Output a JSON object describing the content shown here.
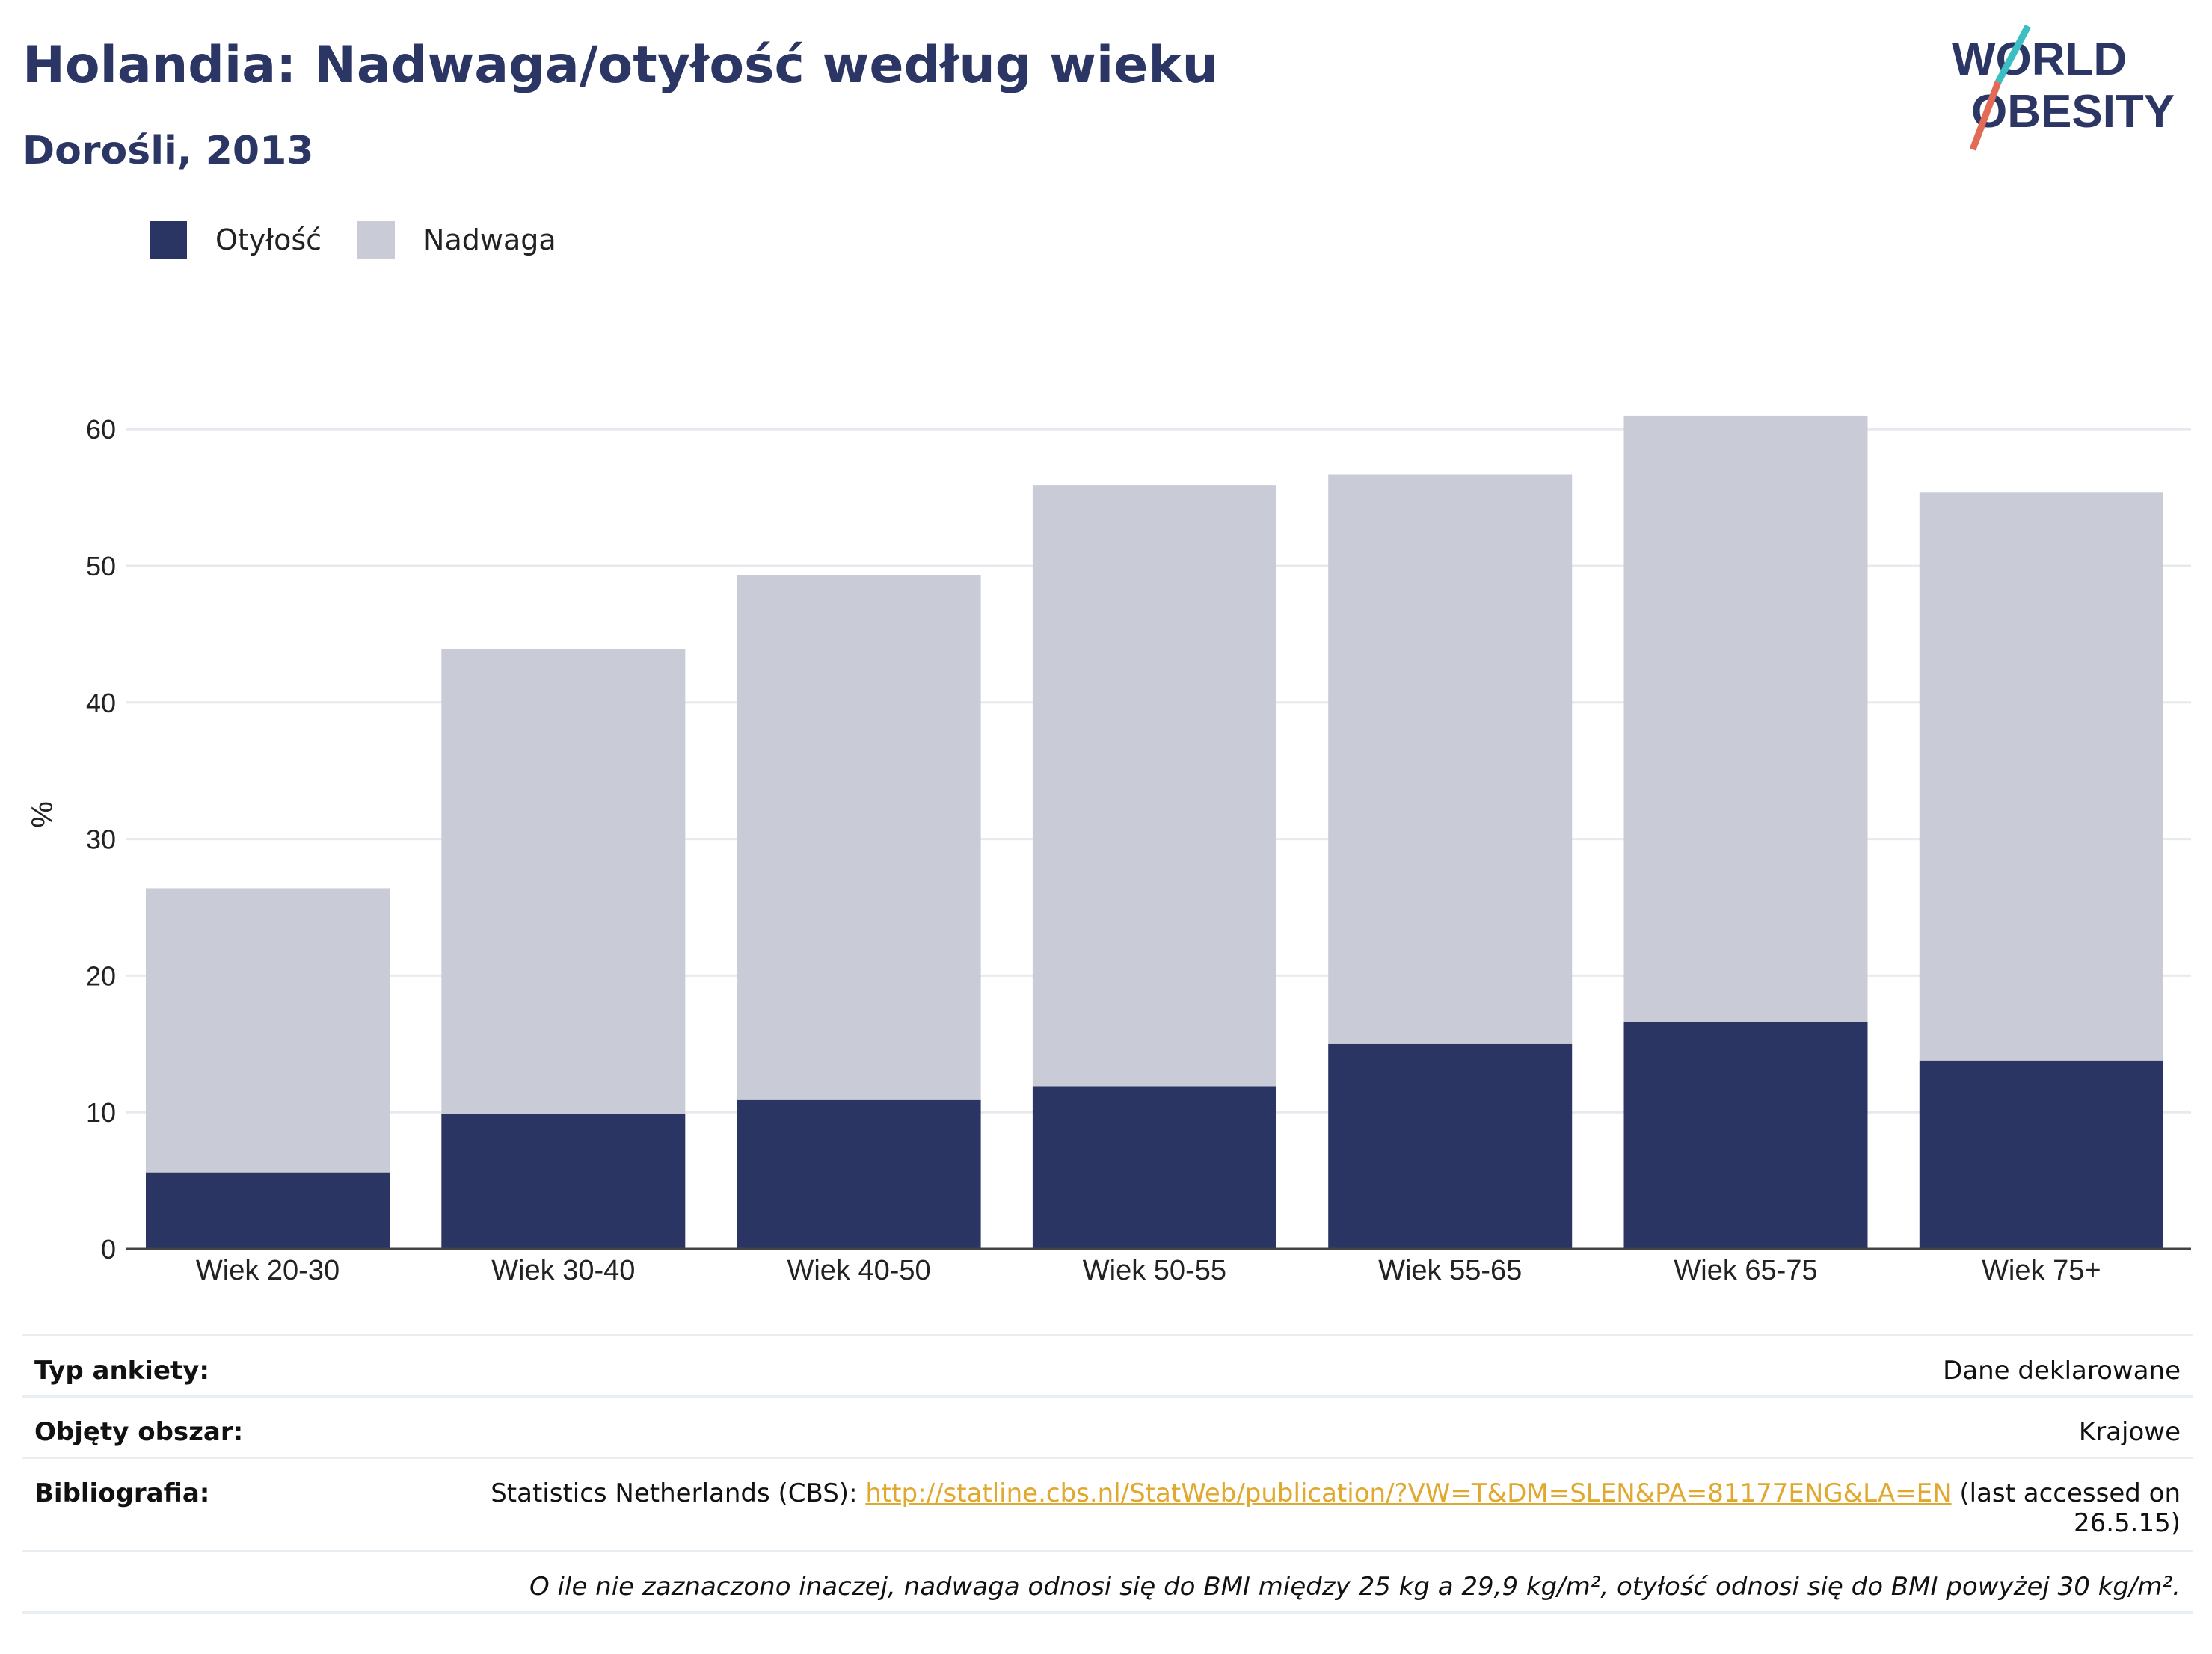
{
  "header": {
    "title": "Holandia: Nadwaga/otyłość według wieku",
    "subtitle": "Dorośli, 2013"
  },
  "logo": {
    "line1": "WORLD",
    "line2": "OBESITY"
  },
  "colors": {
    "obesity": "#2a3563",
    "overweight": "#c9cbd7",
    "title": "#2b3664",
    "link": "#e0a82e",
    "gridline": "#e6e9ee"
  },
  "legend": [
    {
      "label": "Otyłość",
      "color": "#2a3563"
    },
    {
      "label": "Nadwaga",
      "color": "#c9cbd7"
    }
  ],
  "chart_data": {
    "type": "bar",
    "stacked": true,
    "categories": [
      "Wiek 20-30",
      "Wiek 30-40",
      "Wiek 40-50",
      "Wiek 50-55",
      "Wiek 55-65",
      "Wiek 65-75",
      "Wiek 75+"
    ],
    "series": [
      {
        "name": "Otyłość",
        "values": [
          5.6,
          9.9,
          10.9,
          11.9,
          15.0,
          16.6,
          13.8
        ]
      },
      {
        "name": "Nadwaga",
        "values": [
          20.8,
          34.0,
          38.4,
          44.0,
          41.7,
          44.4,
          41.6
        ]
      }
    ],
    "ylabel": "%",
    "ylim": [
      0,
      64
    ],
    "yticks": [
      0,
      10,
      20,
      30,
      40,
      50,
      60
    ],
    "grid": true,
    "legend_position": "top-left"
  },
  "footer": {
    "survey_label": "Typ ankiety:",
    "survey_value": "Dane deklarowane",
    "area_label": "Objęty obszar:",
    "area_value": "Krajowe",
    "bib_label": "Bibliografia:",
    "bib_prefix": "Statistics Netherlands (CBS): ",
    "bib_link": "http://statline.cbs.nl/StatWeb/publication/?VW=T&DM=SLEN&PA=81177ENG&LA=EN",
    "bib_suffix": " (last accessed on 26.5.15)",
    "note": "O ile nie zaznaczono inaczej, nadwaga odnosi się do BMI między 25 kg a 29,9 kg/m², otyłość odnosi się do BMI powyżej 30 kg/m²."
  }
}
